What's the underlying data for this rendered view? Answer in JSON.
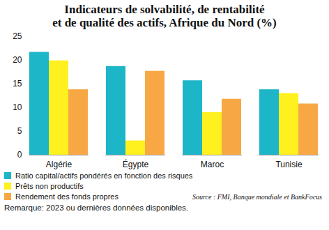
{
  "chart_data": {
    "type": "bar",
    "title": "Indicateurs de solvabilité, de rentabilité\net de qualité des actifs, Afrique du Nord (%)",
    "categories": [
      "Algérie",
      "Égypte",
      "Maroc",
      "Tunisie"
    ],
    "series": [
      {
        "name": "Ratio capital/actifs pondérés en fonction des risques",
        "color": "#1db5c8",
        "values": [
          21.7,
          18.7,
          15.7,
          13.8
        ]
      },
      {
        "name": "Prêts non productifs",
        "color": "#fff01f",
        "values": [
          19.9,
          3.0,
          9.0,
          13.0
        ]
      },
      {
        "name": "Rendement des fonds propres",
        "color": "#f7a844",
        "values": [
          13.8,
          17.7,
          11.8,
          10.8
        ]
      }
    ],
    "ylim": [
      0,
      25
    ],
    "yticks": [
      0,
      5,
      10,
      15,
      20,
      25
    ],
    "grid": false,
    "legend": "bottom",
    "source": "Source : FMI, Banque mondiale et BankFocus",
    "note": "Remarque: 2023 ou dernières données disponibles."
  }
}
